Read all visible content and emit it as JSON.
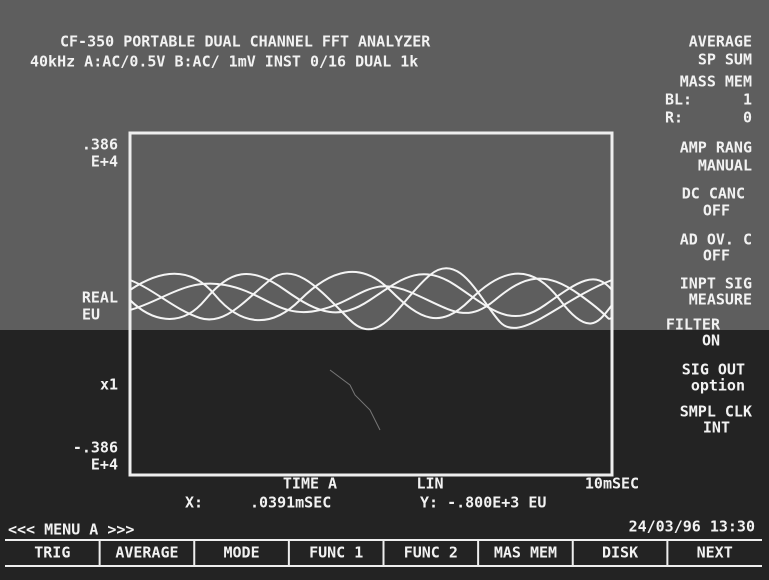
{
  "header": {
    "title": "CF-350 PORTABLE DUAL CHANNEL FFT ANALYZER",
    "status": "40kHz A:AC/0.5V  B:AC/ 1mV  INST    0/16    DUAL 1k"
  },
  "left_axis": {
    "top": ".386",
    "top_exp": "E+4",
    "name": "REAL",
    "unit": "EU",
    "scale": "x1",
    "bottom": "-.386",
    "bottom_exp": "E+4"
  },
  "right_panel": {
    "average": "AVERAGE",
    "average_mode": "SP  SUM",
    "mass_mem": "MASS MEM",
    "bl_label": "BL:",
    "bl_value": "1",
    "r_label": "R:",
    "r_value": "0",
    "amp_rang": "AMP RANG",
    "amp_rang_value": "MANUAL",
    "dc_canc": "DC CANC",
    "dc_canc_value": "OFF",
    "ad_ov": "AD OV. C",
    "ad_ov_value": "OFF",
    "inpt_sig": "INPT SIG",
    "inpt_sig_value": "MEASURE",
    "filter": "FILTER",
    "filter_value": "ON",
    "sig_out": "SIG OUT",
    "sig_out_value": "option",
    "smpl_clk": "SMPL CLK",
    "smpl_clk_value": "INT"
  },
  "plot": {
    "x_label": "TIME A",
    "x_scale": "LIN",
    "x_end": "10mSEC",
    "cursor_x_label": "X:",
    "cursor_x": ".0391mSEC",
    "cursor_y": "Y: -.800E+3 EU"
  },
  "footer": {
    "menu": "<<< MENU A >>>",
    "datetime": "24/03/96 13:30"
  },
  "menu": {
    "items": [
      "TRIG",
      "AVERAGE",
      "MODE",
      "FUNC 1",
      "FUNC 2",
      "MAS MEM",
      "DISK",
      "NEXT"
    ]
  }
}
